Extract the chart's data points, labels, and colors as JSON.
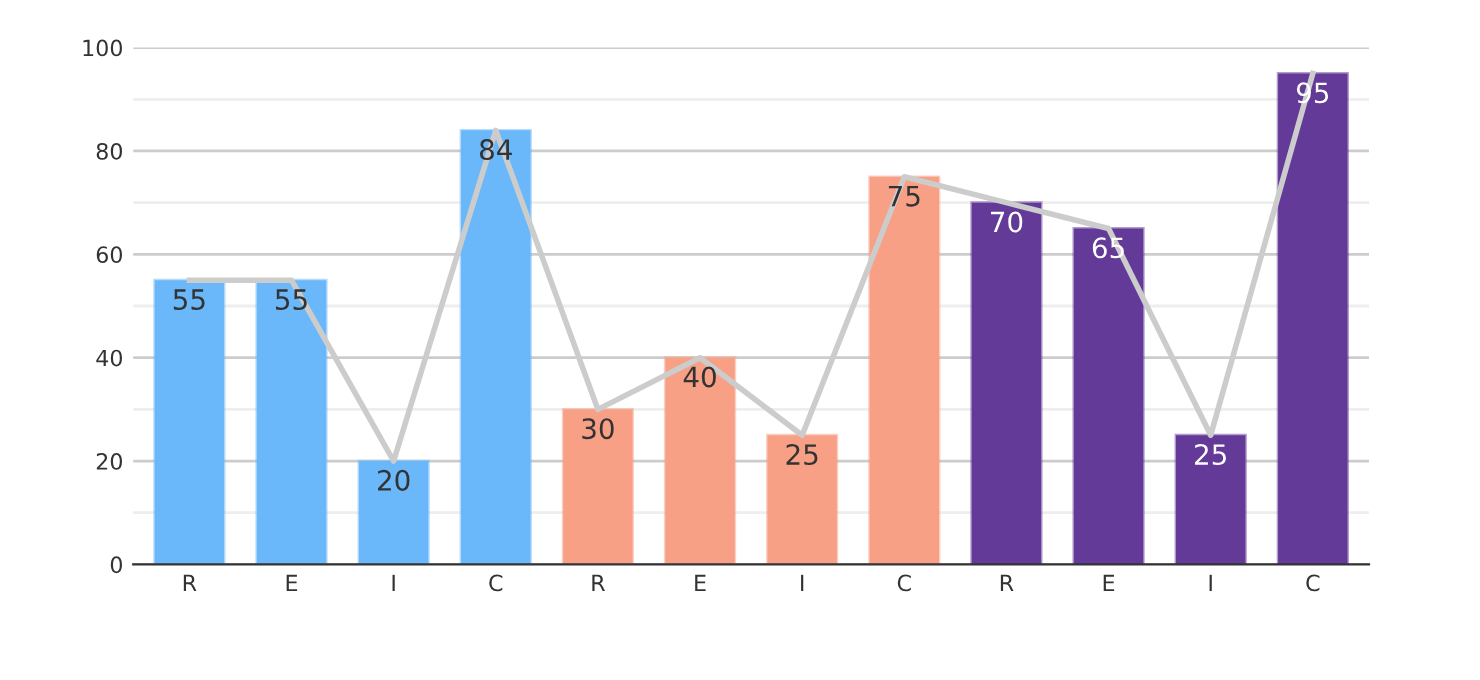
{
  "chart_data": {
    "type": "bar",
    "categories": [
      "R",
      "E",
      "I",
      "C",
      "R",
      "E",
      "I",
      "C",
      "R",
      "E",
      "I",
      "C"
    ],
    "series": [
      {
        "values": [
          55,
          55,
          20,
          84,
          30,
          40,
          25,
          75,
          70,
          65,
          25,
          95
        ],
        "value_labels": [
          "55",
          "55",
          "20",
          "84",
          "30",
          "40",
          "25",
          "75",
          "70",
          "65",
          "25",
          "95"
        ],
        "colors": [
          "#6ab7fa",
          "#6ab7fa",
          "#6ab7fa",
          "#6ab7fa",
          "#f7a086",
          "#f7a086",
          "#f7a086",
          "#f7a086",
          "#633a98",
          "#633a98",
          "#633a98",
          "#633a98"
        ]
      },
      {
        "type": "line",
        "color": "#cccccc",
        "values": [
          55,
          55,
          20,
          84,
          30,
          40,
          25,
          75,
          70,
          65,
          25,
          95
        ]
      }
    ],
    "ylim": [
      0,
      100
    ],
    "yticks": [
      0,
      {
        "value": 10,
        "label": null
      },
      20,
      {
        "value": 30,
        "label": null
      },
      40,
      {
        "value": 50,
        "label": null
      },
      60,
      {
        "value": 70,
        "label": null
      },
      80,
      {
        "value": 90,
        "label": null
      },
      100
    ],
    "grid": "y",
    "marker": "none"
  }
}
